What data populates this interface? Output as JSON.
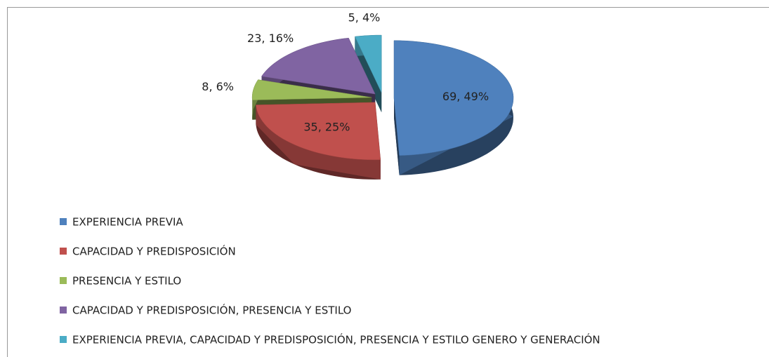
{
  "chart_data": {
    "type": "pie3d",
    "categories": [
      "EXPERIENCIA PREVIA",
      "CAPACIDAD Y PREDISPOSICIÓN",
      "PRESENCIA Y ESTILO",
      "CAPACIDAD Y PREDISPOSICIÓN, PRESENCIA Y ESTILO",
      "EXPERIENCIA PREVIA,  CAPACIDAD Y PREDISPOSICIÓN, PRESENCIA Y ESTILO GENERO Y GENERACIÓN"
    ],
    "values": [
      69,
      35,
      8,
      23,
      5
    ],
    "value_labels": [
      "69, 49%",
      "35, 25%",
      "8, 6%",
      "23, 16%",
      "5, 4%"
    ],
    "colors": [
      "#4f81bd",
      "#c0504d",
      "#9bbb59",
      "#8064a2",
      "#4bacc6"
    ],
    "legend": "bottom-left"
  }
}
